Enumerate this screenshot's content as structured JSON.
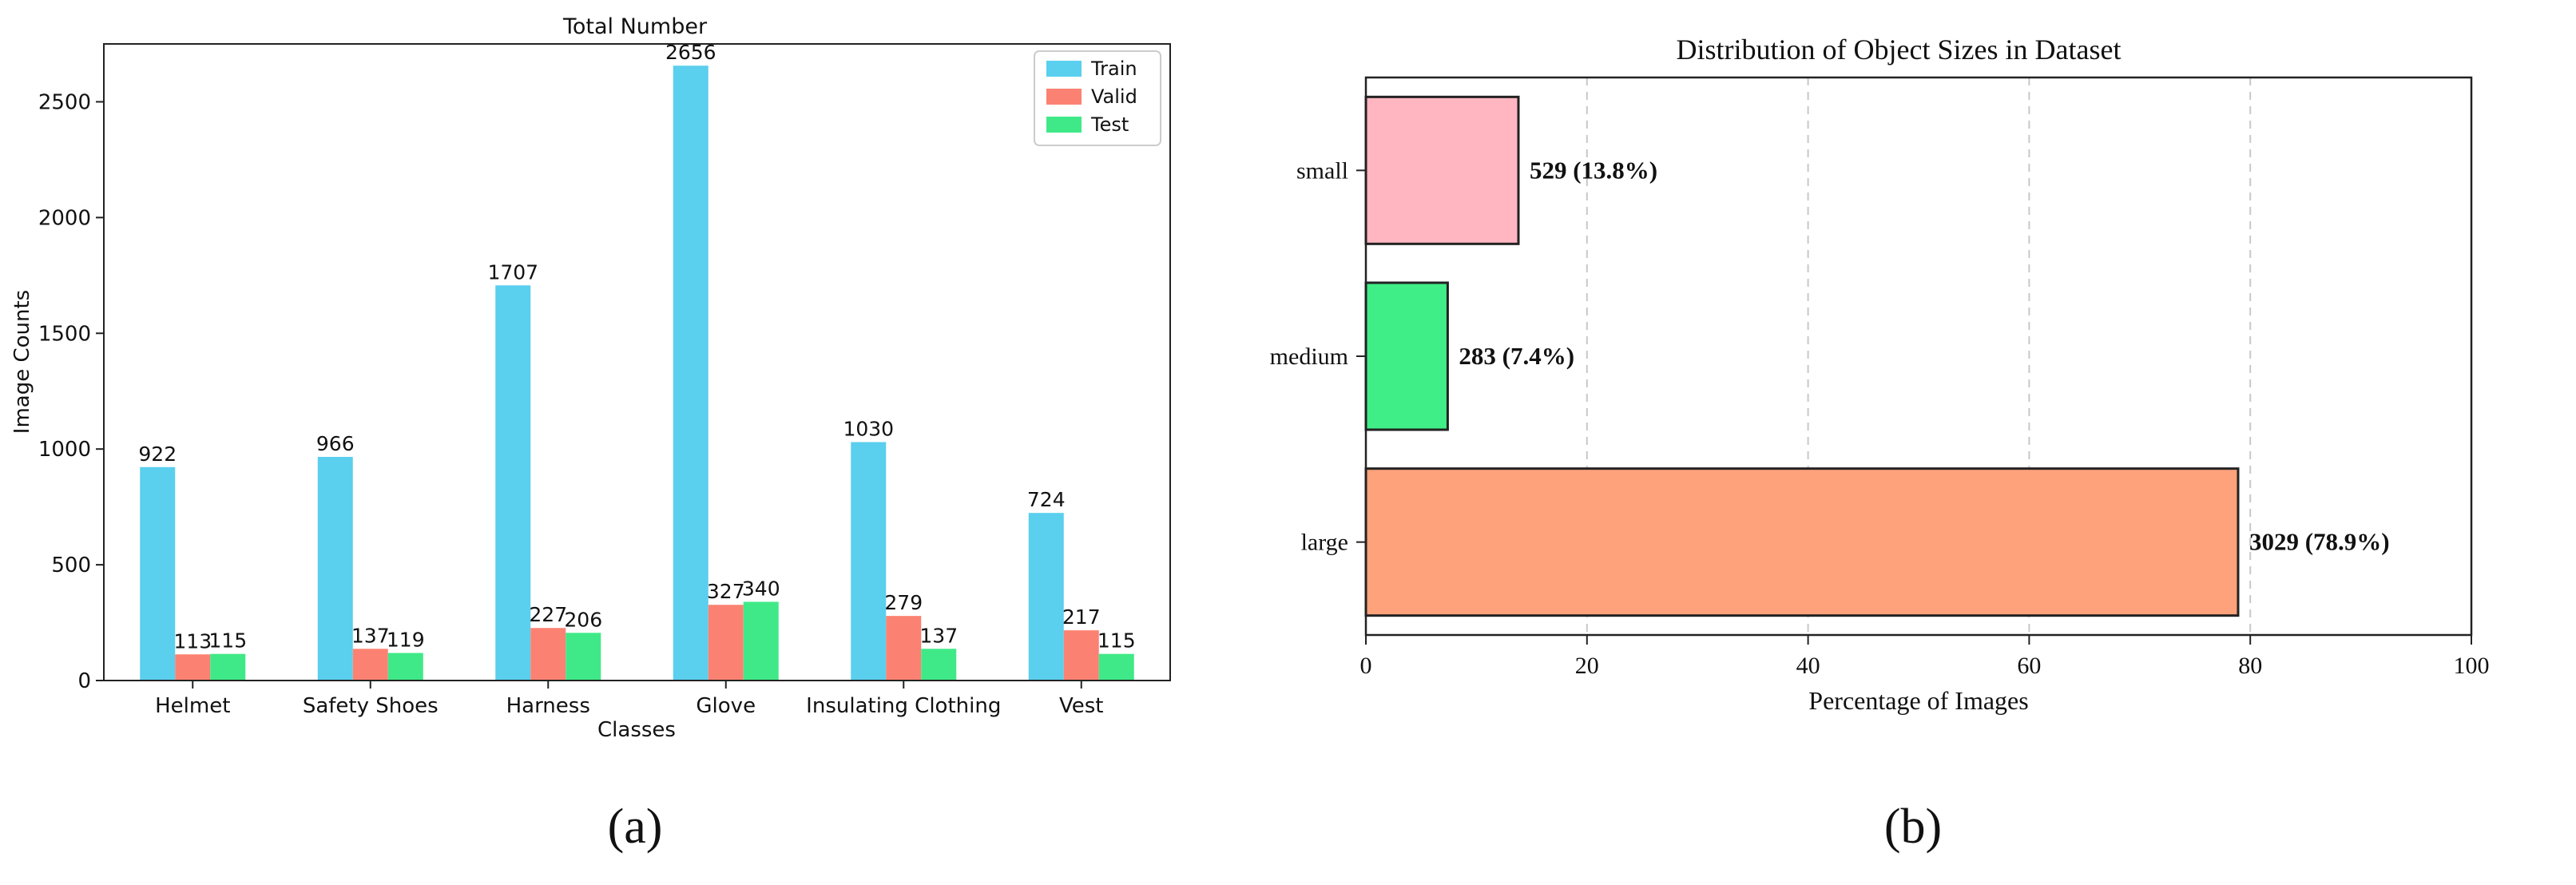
{
  "chart_data": [
    {
      "panel_label": "(a)",
      "type": "bar",
      "title": "Total Number",
      "xlabel": "Classes",
      "ylabel": "Image Counts",
      "ylim": [
        0,
        2750
      ],
      "yticks": [
        0,
        500,
        1000,
        1500,
        2000,
        2500
      ],
      "categories": [
        "Helmet",
        "Safety Shoes",
        "Harness",
        "Glove",
        "Insulating Clothing",
        "Vest"
      ],
      "legend_position": "top-right",
      "series": [
        {
          "name": "Train",
          "color": "#5acfee",
          "values": [
            922,
            966,
            1707,
            2656,
            1030,
            724
          ]
        },
        {
          "name": "Valid",
          "color": "#fb8272",
          "values": [
            113,
            137,
            227,
            327,
            279,
            217
          ]
        },
        {
          "name": "Test",
          "color": "#40e987",
          "values": [
            115,
            119,
            206,
            340,
            137,
            115
          ]
        }
      ]
    },
    {
      "panel_label": "(b)",
      "type": "bar",
      "orientation": "horizontal",
      "title": "Distribution of Object Sizes in Dataset",
      "xlabel": "Percentage of Images",
      "ylabel": "",
      "xlim": [
        0,
        100
      ],
      "xticks": [
        0,
        20,
        40,
        60,
        80,
        100
      ],
      "grid": "x-dashed",
      "categories": [
        "small",
        "medium",
        "large"
      ],
      "values": [
        13.8,
        7.4,
        78.9
      ],
      "labels": [
        "529 (13.8%)",
        "283 (7.4%)",
        "3029 (78.9%)"
      ],
      "colors": [
        "#ffb6c1",
        "#40ee87",
        "#fea27b"
      ]
    }
  ]
}
